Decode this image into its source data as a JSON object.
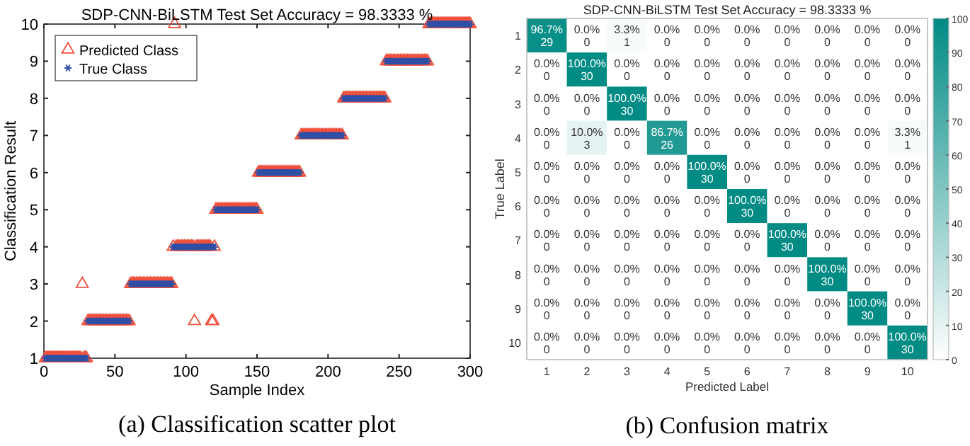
{
  "chart_data": [
    {
      "type": "scatter",
      "title": "SDP-CNN-BiLSTM Test Set Accuracy = 98.3333 %",
      "xlabel": "Sample Index",
      "ylabel": "Classification Result",
      "annotations": [
        "(a) Classification scatter plot"
      ],
      "xlim": [
        0,
        300
      ],
      "xticks": [
        0,
        50,
        100,
        150,
        200,
        250,
        300
      ],
      "ylim": [
        1,
        10
      ],
      "yticks": [
        1,
        2,
        3,
        4,
        5,
        6,
        7,
        8,
        9,
        10
      ],
      "grid": false,
      "legend": "top left",
      "x": [
        1,
        2,
        3,
        4,
        5,
        6,
        7,
        8,
        9,
        10,
        11,
        12,
        13,
        14,
        15,
        16,
        17,
        18,
        19,
        20,
        21,
        22,
        23,
        24,
        25,
        26,
        27,
        28,
        29,
        30,
        31,
        32,
        33,
        34,
        35,
        36,
        37,
        38,
        39,
        40,
        41,
        42,
        43,
        44,
        45,
        46,
        47,
        48,
        49,
        50,
        51,
        52,
        53,
        54,
        55,
        56,
        57,
        58,
        59,
        60,
        61,
        62,
        63,
        64,
        65,
        66,
        67,
        68,
        69,
        70,
        71,
        72,
        73,
        74,
        75,
        76,
        77,
        78,
        79,
        80,
        81,
        82,
        83,
        84,
        85,
        86,
        87,
        88,
        89,
        90,
        91,
        92,
        93,
        94,
        95,
        96,
        97,
        98,
        99,
        100,
        101,
        102,
        103,
        104,
        105,
        106,
        107,
        108,
        109,
        110,
        111,
        112,
        113,
        114,
        115,
        116,
        117,
        118,
        119,
        120,
        121,
        122,
        123,
        124,
        125,
        126,
        127,
        128,
        129,
        130,
        131,
        132,
        133,
        134,
        135,
        136,
        137,
        138,
        139,
        140,
        141,
        142,
        143,
        144,
        145,
        146,
        147,
        148,
        149,
        150,
        151,
        152,
        153,
        154,
        155,
        156,
        157,
        158,
        159,
        160,
        161,
        162,
        163,
        164,
        165,
        166,
        167,
        168,
        169,
        170,
        171,
        172,
        173,
        174,
        175,
        176,
        177,
        178,
        179,
        180,
        181,
        182,
        183,
        184,
        185,
        186,
        187,
        188,
        189,
        190,
        191,
        192,
        193,
        194,
        195,
        196,
        197,
        198,
        199,
        200,
        201,
        202,
        203,
        204,
        205,
        206,
        207,
        208,
        209,
        210,
        211,
        212,
        213,
        214,
        215,
        216,
        217,
        218,
        219,
        220,
        221,
        222,
        223,
        224,
        225,
        226,
        227,
        228,
        229,
        230,
        231,
        232,
        233,
        234,
        235,
        236,
        237,
        238,
        239,
        240,
        241,
        242,
        243,
        244,
        245,
        246,
        247,
        248,
        249,
        250,
        251,
        252,
        253,
        254,
        255,
        256,
        257,
        258,
        259,
        260,
        261,
        262,
        263,
        264,
        265,
        266,
        267,
        268,
        269,
        270,
        271,
        272,
        273,
        274,
        275,
        276,
        277,
        278,
        279,
        280,
        281,
        282,
        283,
        284,
        285,
        286,
        287,
        288,
        289,
        290,
        291,
        292,
        293,
        294,
        295,
        296,
        297,
        298,
        299,
        300
      ],
      "series": [
        {
          "name": "Predicted Class",
          "color": "#f0503c",
          "marker": "triangle",
          "values": [
            1,
            1,
            1,
            1,
            1,
            1,
            1,
            1,
            1,
            1,
            1,
            1,
            1,
            1,
            1,
            1,
            1,
            1,
            1,
            1,
            1,
            1,
            1,
            1,
            1,
            1,
            3,
            1,
            1,
            1,
            2,
            2,
            2,
            2,
            2,
            2,
            2,
            2,
            2,
            2,
            2,
            2,
            2,
            2,
            2,
            2,
            2,
            2,
            2,
            2,
            2,
            2,
            2,
            2,
            2,
            2,
            2,
            2,
            2,
            2,
            3,
            3,
            3,
            3,
            3,
            3,
            3,
            3,
            3,
            3,
            3,
            3,
            3,
            3,
            3,
            3,
            3,
            3,
            3,
            3,
            3,
            3,
            3,
            3,
            3,
            3,
            3,
            3,
            3,
            3,
            4,
            10,
            4,
            4,
            4,
            4,
            4,
            4,
            4,
            4,
            4,
            4,
            4,
            4,
            4,
            2,
            4,
            4,
            4,
            4,
            4,
            4,
            4,
            4,
            4,
            4,
            4,
            2,
            2,
            4,
            5,
            5,
            5,
            5,
            5,
            5,
            5,
            5,
            5,
            5,
            5,
            5,
            5,
            5,
            5,
            5,
            5,
            5,
            5,
            5,
            5,
            5,
            5,
            5,
            5,
            5,
            5,
            5,
            5,
            5,
            6,
            6,
            6,
            6,
            6,
            6,
            6,
            6,
            6,
            6,
            6,
            6,
            6,
            6,
            6,
            6,
            6,
            6,
            6,
            6,
            6,
            6,
            6,
            6,
            6,
            6,
            6,
            6,
            6,
            6,
            7,
            7,
            7,
            7,
            7,
            7,
            7,
            7,
            7,
            7,
            7,
            7,
            7,
            7,
            7,
            7,
            7,
            7,
            7,
            7,
            7,
            7,
            7,
            7,
            7,
            7,
            7,
            7,
            7,
            7,
            8,
            8,
            8,
            8,
            8,
            8,
            8,
            8,
            8,
            8,
            8,
            8,
            8,
            8,
            8,
            8,
            8,
            8,
            8,
            8,
            8,
            8,
            8,
            8,
            8,
            8,
            8,
            8,
            8,
            8,
            9,
            9,
            9,
            9,
            9,
            9,
            9,
            9,
            9,
            9,
            9,
            9,
            9,
            9,
            9,
            9,
            9,
            9,
            9,
            9,
            9,
            9,
            9,
            9,
            9,
            9,
            9,
            9,
            9,
            9,
            10,
            10,
            10,
            10,
            10,
            10,
            10,
            10,
            10,
            10,
            10,
            10,
            10,
            10,
            10,
            10,
            10,
            10,
            10,
            10,
            10,
            10,
            10,
            10,
            10,
            10,
            10,
            10,
            10,
            10
          ]
        },
        {
          "name": "True Class",
          "color": "#2f4fa5",
          "marker": "cross",
          "values": [
            1,
            1,
            1,
            1,
            1,
            1,
            1,
            1,
            1,
            1,
            1,
            1,
            1,
            1,
            1,
            1,
            1,
            1,
            1,
            1,
            1,
            1,
            1,
            1,
            1,
            1,
            1,
            1,
            1,
            1,
            2,
            2,
            2,
            2,
            2,
            2,
            2,
            2,
            2,
            2,
            2,
            2,
            2,
            2,
            2,
            2,
            2,
            2,
            2,
            2,
            2,
            2,
            2,
            2,
            2,
            2,
            2,
            2,
            2,
            2,
            3,
            3,
            3,
            3,
            3,
            3,
            3,
            3,
            3,
            3,
            3,
            3,
            3,
            3,
            3,
            3,
            3,
            3,
            3,
            3,
            3,
            3,
            3,
            3,
            3,
            3,
            3,
            3,
            3,
            3,
            4,
            4,
            4,
            4,
            4,
            4,
            4,
            4,
            4,
            4,
            4,
            4,
            4,
            4,
            4,
            4,
            4,
            4,
            4,
            4,
            4,
            4,
            4,
            4,
            4,
            4,
            4,
            4,
            4,
            4,
            5,
            5,
            5,
            5,
            5,
            5,
            5,
            5,
            5,
            5,
            5,
            5,
            5,
            5,
            5,
            5,
            5,
            5,
            5,
            5,
            5,
            5,
            5,
            5,
            5,
            5,
            5,
            5,
            5,
            5,
            6,
            6,
            6,
            6,
            6,
            6,
            6,
            6,
            6,
            6,
            6,
            6,
            6,
            6,
            6,
            6,
            6,
            6,
            6,
            6,
            6,
            6,
            6,
            6,
            6,
            6,
            6,
            6,
            6,
            6,
            7,
            7,
            7,
            7,
            7,
            7,
            7,
            7,
            7,
            7,
            7,
            7,
            7,
            7,
            7,
            7,
            7,
            7,
            7,
            7,
            7,
            7,
            7,
            7,
            7,
            7,
            7,
            7,
            7,
            7,
            8,
            8,
            8,
            8,
            8,
            8,
            8,
            8,
            8,
            8,
            8,
            8,
            8,
            8,
            8,
            8,
            8,
            8,
            8,
            8,
            8,
            8,
            8,
            8,
            8,
            8,
            8,
            8,
            8,
            8,
            9,
            9,
            9,
            9,
            9,
            9,
            9,
            9,
            9,
            9,
            9,
            9,
            9,
            9,
            9,
            9,
            9,
            9,
            9,
            9,
            9,
            9,
            9,
            9,
            9,
            9,
            9,
            9,
            9,
            9,
            10,
            10,
            10,
            10,
            10,
            10,
            10,
            10,
            10,
            10,
            10,
            10,
            10,
            10,
            10,
            10,
            10,
            10,
            10,
            10,
            10,
            10,
            10,
            10,
            10,
            10,
            10,
            10,
            10,
            10
          ]
        }
      ]
    },
    {
      "type": "heatmap",
      "title": "SDP-CNN-BiLSTM Test Set Accuracy = 98.3333 %",
      "xlabel": "Predicted Label",
      "ylabel": "True Label",
      "annotations": [
        "(b) Confusion matrix"
      ],
      "categories": [
        "1",
        "2",
        "3",
        "4",
        "5",
        "6",
        "7",
        "8",
        "9",
        "10"
      ],
      "y_categories": [
        "1",
        "2",
        "3",
        "4",
        "5",
        "6",
        "7",
        "8",
        "9",
        "10"
      ],
      "clim": [
        0,
        100
      ],
      "cticks": [
        0,
        10,
        20,
        30,
        40,
        50,
        60,
        70,
        80,
        90,
        100
      ],
      "cells": [
        [
          96.7,
          0,
          3.3,
          0,
          0,
          0,
          0,
          0,
          0,
          0
        ],
        [
          0,
          100,
          0,
          0,
          0,
          0,
          0,
          0,
          0,
          0
        ],
        [
          0,
          0,
          100,
          0,
          0,
          0,
          0,
          0,
          0,
          0
        ],
        [
          0,
          10,
          0,
          86.7,
          0,
          0,
          0,
          0,
          0,
          3.3
        ],
        [
          0,
          0,
          0,
          0,
          100,
          0,
          0,
          0,
          0,
          0
        ],
        [
          0,
          0,
          0,
          0,
          0,
          100,
          0,
          0,
          0,
          0
        ],
        [
          0,
          0,
          0,
          0,
          0,
          0,
          100,
          0,
          0,
          0
        ],
        [
          0,
          0,
          0,
          0,
          0,
          0,
          0,
          100,
          0,
          0
        ],
        [
          0,
          0,
          0,
          0,
          0,
          0,
          0,
          0,
          100,
          0
        ],
        [
          0,
          0,
          0,
          0,
          0,
          0,
          0,
          0,
          0,
          100
        ]
      ],
      "cell_labels": [
        [
          "96.7%\n29",
          "0.0%\n0",
          "3.3%\n1",
          "0.0%\n0",
          "0.0%\n0",
          "0.0%\n0",
          "0.0%\n0",
          "0.0%\n0",
          "0.0%\n0",
          "0.0%\n0"
        ],
        [
          "0.0%\n0",
          "100.0%\n30",
          "0.0%\n0",
          "0.0%\n0",
          "0.0%\n0",
          "0.0%\n0",
          "0.0%\n0",
          "0.0%\n0",
          "0.0%\n0",
          "0.0%\n0"
        ],
        [
          "0.0%\n0",
          "0.0%\n0",
          "100.0%\n30",
          "0.0%\n0",
          "0.0%\n0",
          "0.0%\n0",
          "0.0%\n0",
          "0.0%\n0",
          "0.0%\n0",
          "0.0%\n0"
        ],
        [
          "0.0%\n0",
          "10.0%\n3",
          "0.0%\n0",
          "86.7%\n26",
          "0.0%\n0",
          "0.0%\n0",
          "0.0%\n0",
          "0.0%\n0",
          "0.0%\n0",
          "3.3%\n1"
        ],
        [
          "0.0%\n0",
          "0.0%\n0",
          "0.0%\n0",
          "0.0%\n0",
          "100.0%\n30",
          "0.0%\n0",
          "0.0%\n0",
          "0.0%\n0",
          "0.0%\n0",
          "0.0%\n0"
        ],
        [
          "0.0%\n0",
          "0.0%\n0",
          "0.0%\n0",
          "0.0%\n0",
          "0.0%\n0",
          "100.0%\n30",
          "0.0%\n0",
          "0.0%\n0",
          "0.0%\n0",
          "0.0%\n0"
        ],
        [
          "0.0%\n0",
          "0.0%\n0",
          "0.0%\n0",
          "0.0%\n0",
          "0.0%\n0",
          "0.0%\n0",
          "100.0%\n30",
          "0.0%\n0",
          "0.0%\n0",
          "0.0%\n0"
        ],
        [
          "0.0%\n0",
          "0.0%\n0",
          "0.0%\n0",
          "0.0%\n0",
          "0.0%\n0",
          "0.0%\n0",
          "0.0%\n0",
          "100.0%\n30",
          "0.0%\n0",
          "0.0%\n0"
        ],
        [
          "0.0%\n0",
          "0.0%\n0",
          "0.0%\n0",
          "0.0%\n0",
          "0.0%\n0",
          "0.0%\n0",
          "0.0%\n0",
          "0.0%\n0",
          "100.0%\n30",
          "0.0%\n0"
        ],
        [
          "0.0%\n0",
          "0.0%\n0",
          "0.0%\n0",
          "0.0%\n0",
          "0.0%\n0",
          "0.0%\n0",
          "0.0%\n0",
          "0.0%\n0",
          "0.0%\n0",
          "100.0%\n30"
        ]
      ]
    }
  ]
}
